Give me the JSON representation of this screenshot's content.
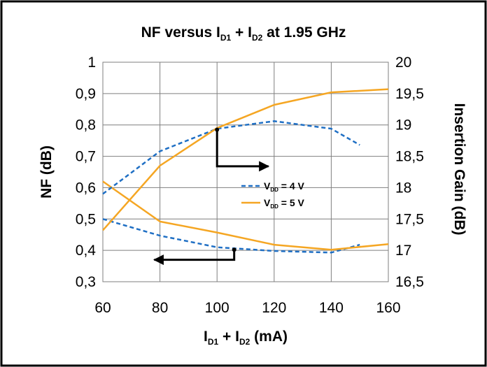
{
  "chart_data": {
    "type": "line",
    "title": {
      "main": "NF versus I",
      "sub1": "D1",
      "mid": " + I",
      "sub2": "D2",
      "tail": " at 1.95 GHz"
    },
    "xlabel": {
      "main": "I",
      "sub1": "D1",
      "mid": " + I",
      "sub2": "D2",
      "tail": " (mA)"
    },
    "ylabel_left": "NF (dB)",
    "ylabel_right": "Insertion Gain (dB)",
    "xlim": [
      60,
      160
    ],
    "x_ticks": [
      "60",
      "80",
      "100",
      "120",
      "140",
      "160"
    ],
    "ylim_left": [
      0.3,
      1.0
    ],
    "y_left_ticks": [
      "0,3",
      "0,4",
      "0,5",
      "0,6",
      "0,7",
      "0,8",
      "0,9",
      "1"
    ],
    "ylim_right": [
      16.5,
      20
    ],
    "y_right_ticks": [
      "16,5",
      "17",
      "17,5",
      "18",
      "18,5",
      "19",
      "19,5",
      "20"
    ],
    "grid": true,
    "legend_position": "center-right",
    "legend": [
      {
        "label_main": "V",
        "label_sub": "DD",
        "label_tail": " = 4  V",
        "color": "#1f6fc4",
        "dashed": true
      },
      {
        "label_main": "V",
        "label_sub": "DD",
        "label_tail": " = 5  V",
        "color": "#f5a623",
        "dashed": false
      }
    ],
    "series": [
      {
        "legend_index": 0,
        "quantity": "NF",
        "axis": "left",
        "x": [
          60,
          80,
          100,
          120,
          140,
          150
        ],
        "y": [
          0.5,
          0.447,
          0.41,
          0.398,
          0.393,
          0.418
        ]
      },
      {
        "legend_index": 1,
        "quantity": "NF",
        "axis": "left",
        "x": [
          60,
          80,
          100,
          120,
          140,
          160
        ],
        "y": [
          0.62,
          0.492,
          0.457,
          0.418,
          0.402,
          0.42
        ]
      },
      {
        "legend_index": 0,
        "quantity": "Insertion Gain",
        "axis": "right",
        "x": [
          60,
          80,
          100,
          120,
          140,
          150
        ],
        "y": [
          17.9,
          18.58,
          18.94,
          19.06,
          18.94,
          18.68
        ]
      },
      {
        "legend_index": 1,
        "quantity": "Insertion Gain",
        "axis": "right",
        "x": [
          60,
          80,
          100,
          120,
          140,
          160
        ],
        "y": [
          17.32,
          18.35,
          18.95,
          19.32,
          19.52,
          19.57
        ]
      }
    ],
    "annotations": [
      {
        "type": "axis-pointer-arrow",
        "points_to": "right-axis",
        "from": [
          100,
          0.785
        ],
        "corner_y": 0.668,
        "to_x": 118
      },
      {
        "type": "axis-pointer-arrow",
        "points_to": "left-axis",
        "from": [
          106,
          0.402
        ],
        "corner_y": 0.37,
        "to_x": 78
      }
    ]
  }
}
